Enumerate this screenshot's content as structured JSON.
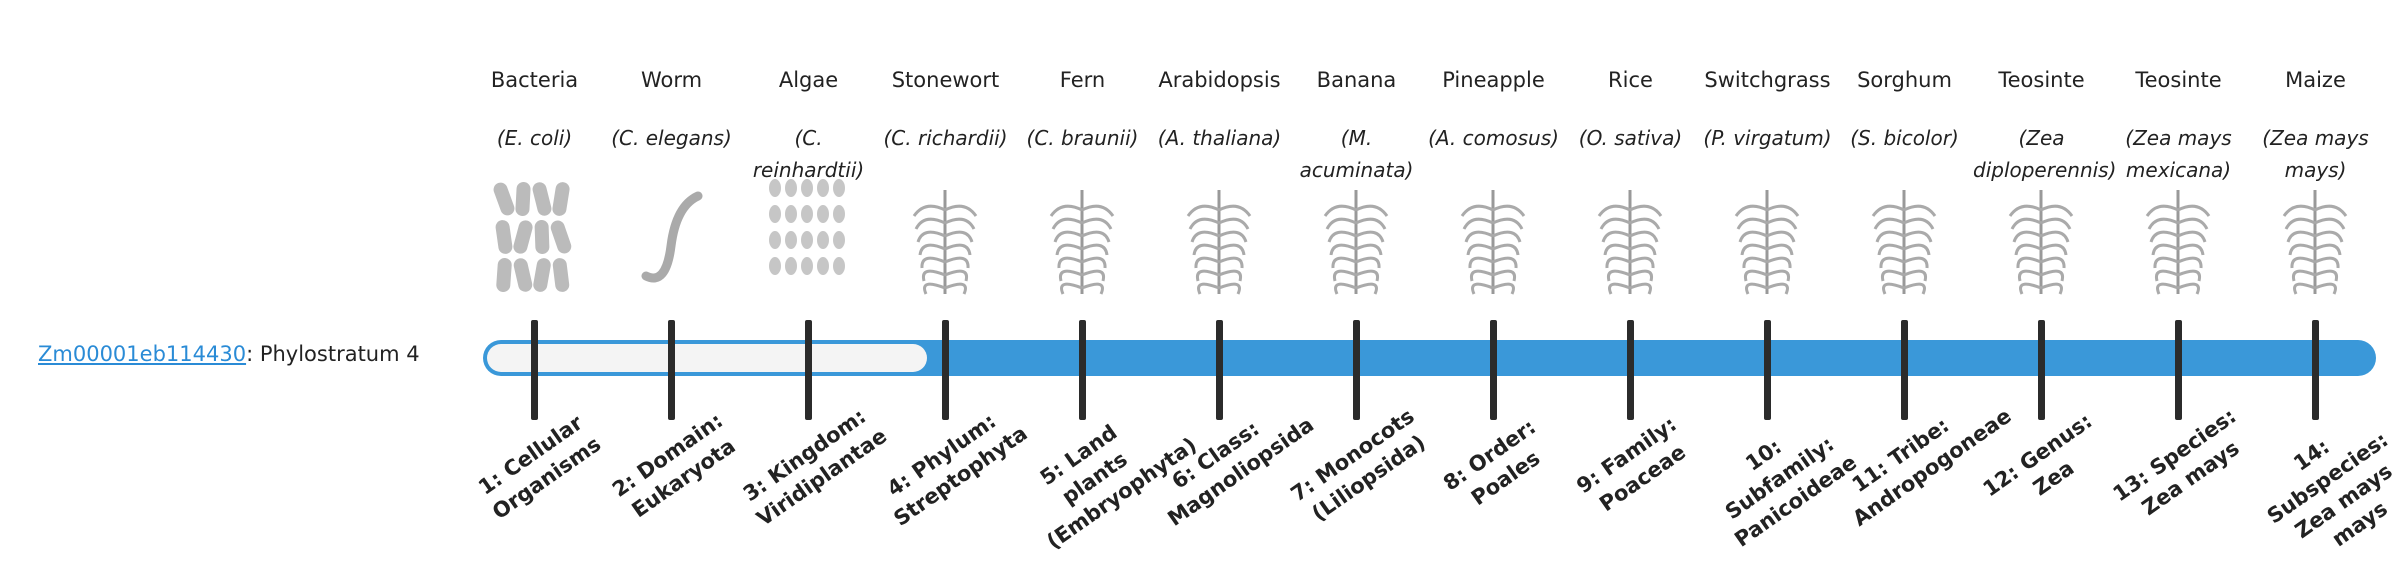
{
  "gene": {
    "id": "Zm00001eb114430",
    "label": ": Phylostratum 4"
  },
  "organisms": [
    {
      "common": "Bacteria",
      "scientific": "(E. coli)",
      "stratum": "1: Cellular Organisms"
    },
    {
      "common": "Worm",
      "scientific": "(C. elegans)",
      "stratum": "2: Domain: Eukaryota"
    },
    {
      "common": "Algae",
      "scientific": "(C. reinhardtii)",
      "stratum": "3: Kingdom: Viridiplantae"
    },
    {
      "common": "Stonewort",
      "scientific": "(C. richardii)",
      "stratum": "4: Phylum: Streptophyta"
    },
    {
      "common": "Fern",
      "scientific": "(C. braunii)",
      "stratum": "5: Land plants (Embryophyta)"
    },
    {
      "common": "Arabidopsis",
      "scientific": "(A. thaliana)",
      "stratum": "6: Class: Magnoliopsida"
    },
    {
      "common": "Banana",
      "scientific": "(M. acuminata)",
      "stratum": "7: Monocots (Liliopsida)"
    },
    {
      "common": "Pineapple",
      "scientific": "(A. comosus)",
      "stratum": "8: Order: Poales"
    },
    {
      "common": "Rice",
      "scientific": "(O. sativa)",
      "stratum": "9: Family: Poaceae"
    },
    {
      "common": "Switchgrass",
      "scientific": "(P. virgatum)",
      "stratum": "10: Subfamily: Panicoideae"
    },
    {
      "common": "Sorghum",
      "scientific": "(S. bicolor)",
      "stratum": "11: Tribe: Andropogoneae"
    },
    {
      "common": "Teosinte",
      "scientific": "(Zea diploperennis)",
      "stratum": "12: Genus: Zea"
    },
    {
      "common": "Teosinte",
      "scientific": "(Zea mays mexicana)",
      "stratum": "13: Species: Zea mays"
    },
    {
      "common": "Maize",
      "scientific": "(Zea mays mays)",
      "stratum": "14: Subspecies: Zea mays mays"
    }
  ]
}
